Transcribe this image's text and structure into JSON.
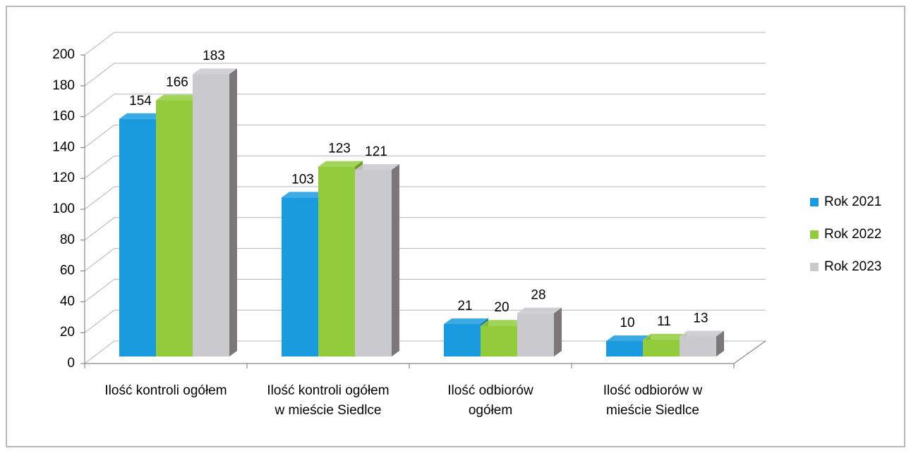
{
  "chart_data": {
    "type": "bar3d",
    "categories": [
      "Ilość kontroli ogółem",
      "Ilość kontroli ogółem w mieście Siedlce",
      "Ilość odbiorów ogółem",
      "Ilość odbiorów w mieście Siedlce"
    ],
    "series": [
      {
        "name": "Rok 2021",
        "color": "#1a9be0",
        "side": "#126fa6",
        "values": [
          154,
          103,
          21,
          10
        ]
      },
      {
        "name": "Rok 2022",
        "color": "#92cc3c",
        "side": "#6a9a22",
        "values": [
          166,
          123,
          20,
          11
        ]
      },
      {
        "name": "Rok 2023",
        "color": "#c9c9ce",
        "side": "#7c7678",
        "values": [
          183,
          121,
          28,
          13
        ]
      }
    ],
    "ylim": [
      0,
      200
    ],
    "yticks": [
      0,
      20,
      40,
      60,
      80,
      100,
      120,
      140,
      160,
      180,
      200
    ],
    "grid": true,
    "legend": "right"
  }
}
